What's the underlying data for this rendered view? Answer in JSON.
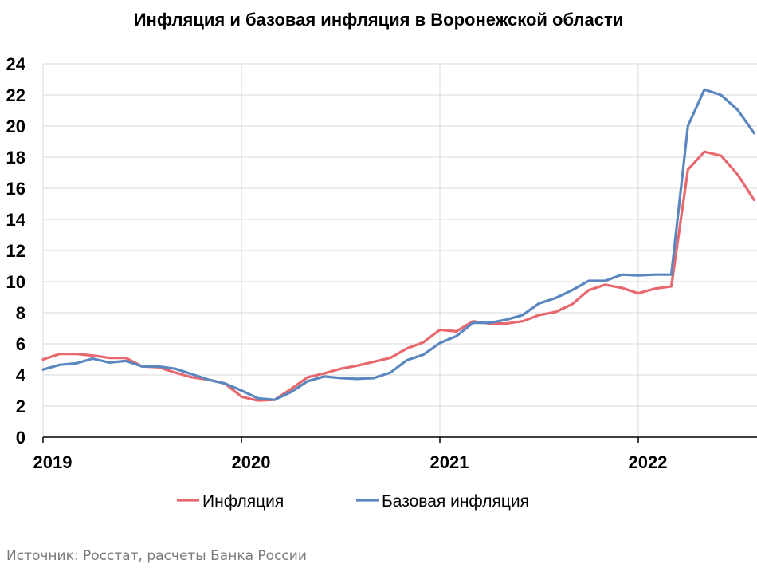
{
  "chart_data": {
    "type": "line",
    "title": "Инфляция и базовая инфляция в Воронежской области",
    "x_start": "2019-01",
    "x_labels": [
      "2019",
      "2020",
      "2021",
      "2022"
    ],
    "ylim": [
      0,
      24
    ],
    "y_ticks": [
      0,
      2,
      4,
      6,
      8,
      10,
      12,
      14,
      16,
      18,
      20,
      22,
      24
    ],
    "grid": true,
    "legend_position": "bottom",
    "series": [
      {
        "name": "Инфляция",
        "color": "#e8686e",
        "values": [
          5.0,
          5.35,
          5.35,
          5.25,
          5.1,
          5.1,
          4.55,
          4.5,
          4.15,
          3.85,
          3.7,
          3.45,
          2.6,
          2.35,
          2.4,
          3.1,
          3.85,
          4.1,
          4.4,
          4.6,
          4.85,
          5.1,
          5.7,
          6.1,
          6.9,
          6.8,
          7.45,
          7.3,
          7.3,
          7.45,
          7.85,
          8.05,
          8.55,
          9.45,
          9.8,
          9.6,
          9.25,
          9.55,
          9.7,
          17.2,
          18.35,
          18.1,
          16.9,
          15.25
        ]
      },
      {
        "name": "Базовая инфляция",
        "color": "#5b87c0",
        "values": [
          4.35,
          4.65,
          4.75,
          5.05,
          4.8,
          4.9,
          4.55,
          4.55,
          4.4,
          4.05,
          3.7,
          3.45,
          3.0,
          2.5,
          2.4,
          2.9,
          3.6,
          3.9,
          3.8,
          3.75,
          3.8,
          4.15,
          4.95,
          5.3,
          6.05,
          6.5,
          7.35,
          7.35,
          7.55,
          7.85,
          8.6,
          8.95,
          9.45,
          10.05,
          10.05,
          10.45,
          10.4,
          10.45,
          10.45,
          20.0,
          22.35,
          22.0,
          21.05,
          19.55
        ]
      }
    ]
  },
  "source": "Источник: Росстат, расчеты Банка России"
}
